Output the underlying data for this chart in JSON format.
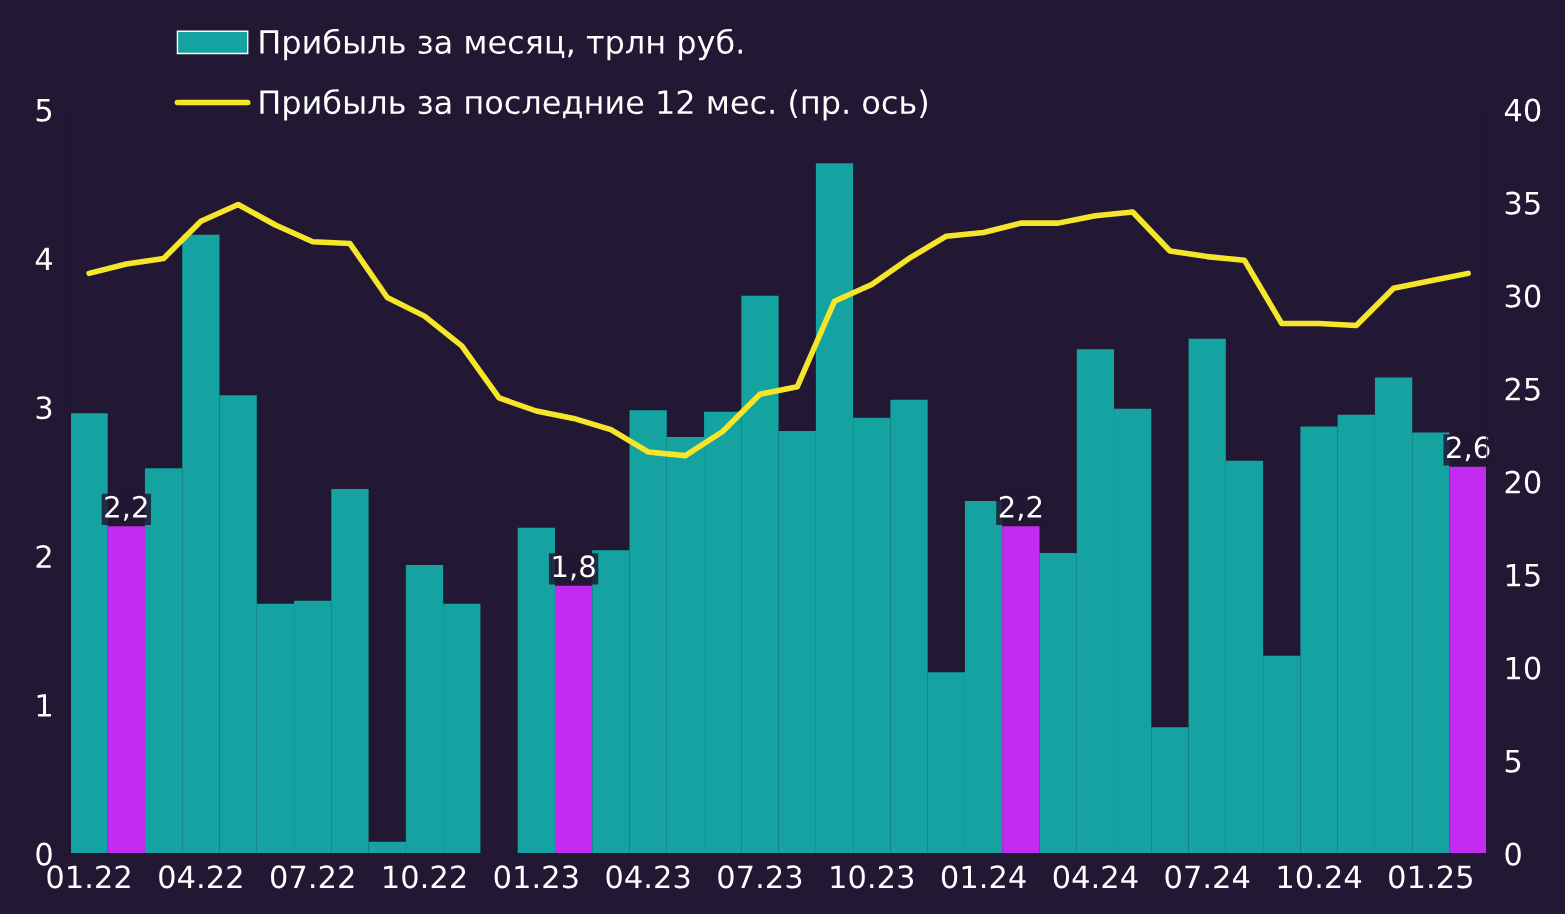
{
  "chart_data": {
    "type": "bar",
    "categories": [
      "01.22",
      null,
      null,
      "04.22",
      null,
      null,
      "07.22",
      null,
      null,
      "10.22",
      null,
      null,
      "01.23",
      null,
      null,
      "04.23",
      null,
      null,
      "07.23",
      null,
      null,
      "10.23",
      null,
      null,
      "01.24",
      null,
      null,
      "04.24",
      null,
      null,
      "07.24",
      null,
      null,
      "10.24",
      null,
      null,
      "01.25",
      null
    ],
    "series": [
      {
        "name": "Прибыль за месяц, трлн руб.",
        "axis": "y",
        "color": "#14a3a0",
        "colors": [
          "#14a3a0",
          "#c42bf0",
          "#14a3a0",
          "#14a3a0",
          "#14a3a0",
          "#14a3a0",
          "#14a3a0",
          "#14a3a0",
          "#14a3a0",
          "#14a3a0",
          "#14a3a0",
          "#14a3a0",
          "#14a3a0",
          "#c42bf0",
          "#14a3a0",
          "#14a3a0",
          "#14a3a0",
          "#14a3a0",
          "#14a3a0",
          "#14a3a0",
          "#14a3a0",
          "#14a3a0",
          "#14a3a0",
          "#14a3a0",
          "#14a3a0",
          "#c42bf0",
          "#14a3a0",
          "#14a3a0",
          "#14a3a0",
          "#14a3a0",
          "#14a3a0",
          "#14a3a0",
          "#14a3a0",
          "#14a3a0",
          "#14a3a0",
          "#14a3a0",
          "#14a3a0",
          "#c42bf0"
        ],
        "values": [
          2.96,
          2.2,
          2.59,
          4.16,
          3.08,
          1.68,
          1.7,
          2.45,
          0.08,
          1.94,
          1.68,
          0.0,
          2.19,
          1.8,
          2.04,
          2.98,
          2.8,
          2.97,
          3.75,
          2.84,
          4.64,
          2.93,
          3.05,
          1.22,
          2.37,
          2.2,
          2.02,
          3.39,
          2.99,
          0.85,
          3.46,
          2.64,
          1.33,
          2.87,
          2.95,
          3.2,
          2.83,
          2.6
        ],
        "value_labels": [
          null,
          "2,2",
          null,
          null,
          null,
          null,
          null,
          null,
          null,
          null,
          null,
          null,
          null,
          "1,8",
          null,
          null,
          null,
          null,
          null,
          null,
          null,
          null,
          null,
          null,
          null,
          "2,2",
          null,
          null,
          null,
          null,
          null,
          null,
          null,
          null,
          null,
          null,
          null,
          "2,6"
        ]
      },
      {
        "name": "Прибыль за последние 12 мес. (пр. ось)",
        "type": "line",
        "axis": "y2",
        "color": "#f5e62a",
        "line_style": "solid",
        "values": [
          31.2,
          31.7,
          32.0,
          34.0,
          34.9,
          33.8,
          32.9,
          32.8,
          29.9,
          28.9,
          27.3,
          24.5,
          23.8,
          23.4,
          22.8,
          21.6,
          21.4,
          22.7,
          24.7,
          25.1,
          29.7,
          30.6,
          32.0,
          33.2,
          33.4,
          33.9,
          33.9,
          34.3,
          34.5,
          32.4,
          32.1,
          31.9,
          28.5,
          28.5,
          28.4,
          30.4,
          30.8,
          31.2
        ]
      }
    ],
    "ylim": [
      0,
      5
    ],
    "yticks": [
      0,
      1,
      2,
      3,
      4,
      5
    ],
    "y2lim": [
      0,
      40
    ],
    "y2ticks": [
      0,
      5,
      10,
      15,
      20,
      25,
      30,
      35,
      40
    ],
    "grid": false,
    "legend": "top left",
    "marker": "none"
  }
}
